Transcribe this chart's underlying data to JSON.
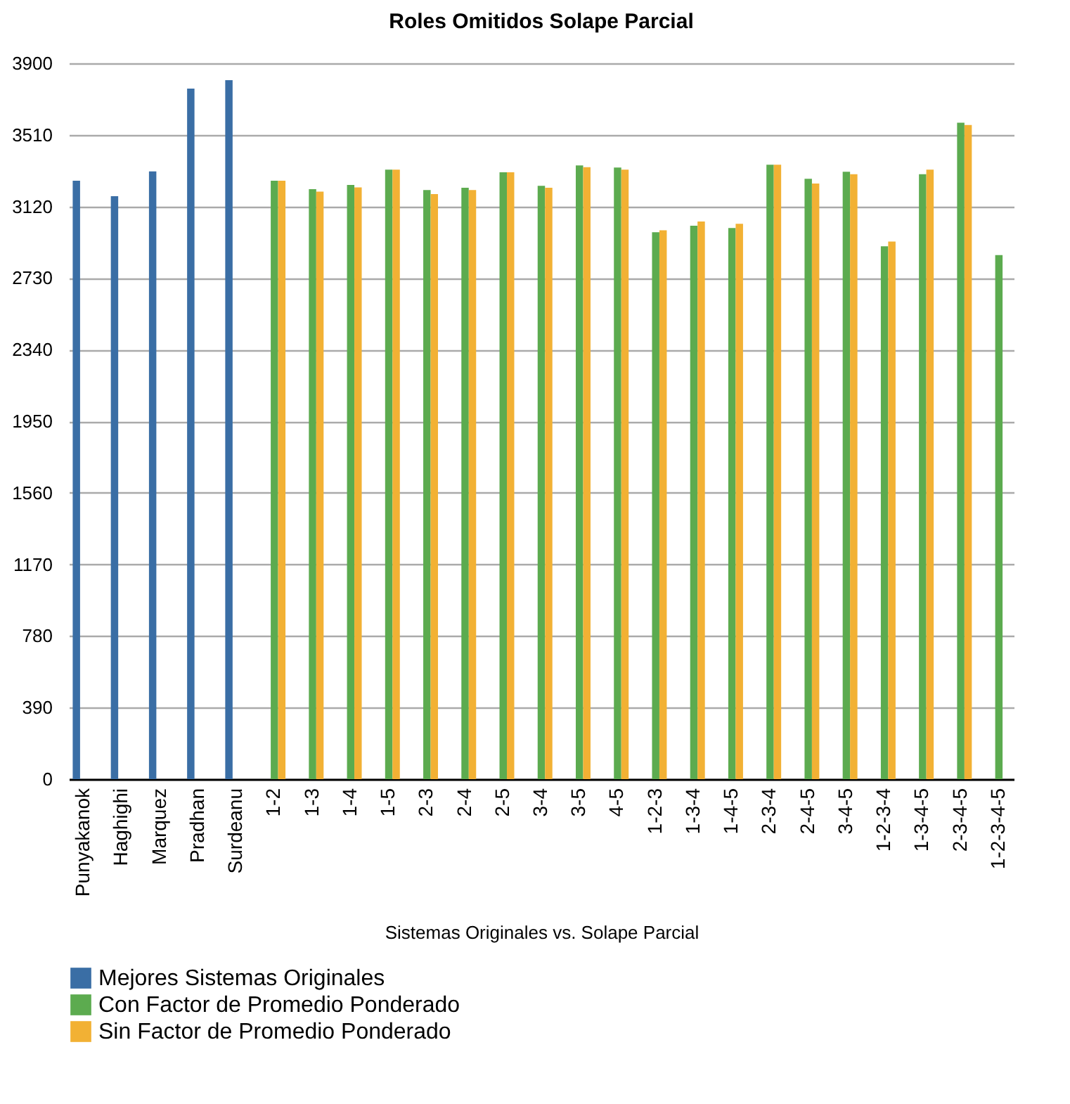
{
  "chart_data": {
    "type": "bar",
    "title": "Roles Omitidos Solape Parcial",
    "xlabel": "Sistemas Originales vs. Solape Parcial",
    "categories": [
      "Punyakanok",
      "Haghighi",
      "Marquez",
      "Pradhan",
      "Surdeanu",
      "1-2",
      "1-3",
      "1-4",
      "1-5",
      "2-3",
      "2-4",
      "2-5",
      "3-4",
      "3-5",
      "4-5",
      "1-2-3",
      "1-3-4",
      "1-4-5",
      "2-3-4",
      "2-4-5",
      "3-4-5",
      "1-2-3-4",
      "1-3-4-5",
      "2-3-4-5",
      "1-2-3-4-5"
    ],
    "series": [
      {
        "name": "Mejores Sistemas Originales",
        "color": "#3a6ea5",
        "values": [
          3260,
          3176,
          3311,
          3762,
          3808,
          null,
          null,
          null,
          null,
          null,
          null,
          null,
          null,
          null,
          null,
          null,
          null,
          null,
          null,
          null,
          null,
          null,
          null,
          null,
          null
        ]
      },
      {
        "name": "Con Factor de Promedio Ponderado",
        "color": "#5cab4f",
        "values": [
          null,
          null,
          null,
          null,
          null,
          3260,
          3214,
          3237,
          3321,
          3209,
          3222,
          3306,
          3232,
          3344,
          3332,
          2980,
          3015,
          3003,
          3347,
          3271,
          3309,
          2903,
          3296,
          3576,
          2855
        ]
      },
      {
        "name": "Sin Factor de Promedio Ponderado",
        "color": "#f2b134",
        "values": [
          null,
          null,
          null,
          null,
          null,
          3260,
          3201,
          3224,
          3321,
          3187,
          3209,
          3306,
          3222,
          3334,
          3321,
          2990,
          3038,
          3026,
          3347,
          3245,
          3296,
          2929,
          3321,
          3564,
          null
        ]
      }
    ],
    "ylim": [
      0,
      3900
    ],
    "yticks": [
      0,
      390,
      780,
      1170,
      1560,
      1950,
      2340,
      2730,
      3120,
      3510,
      3900
    ],
    "grid": "y",
    "legend": "bottom"
  }
}
